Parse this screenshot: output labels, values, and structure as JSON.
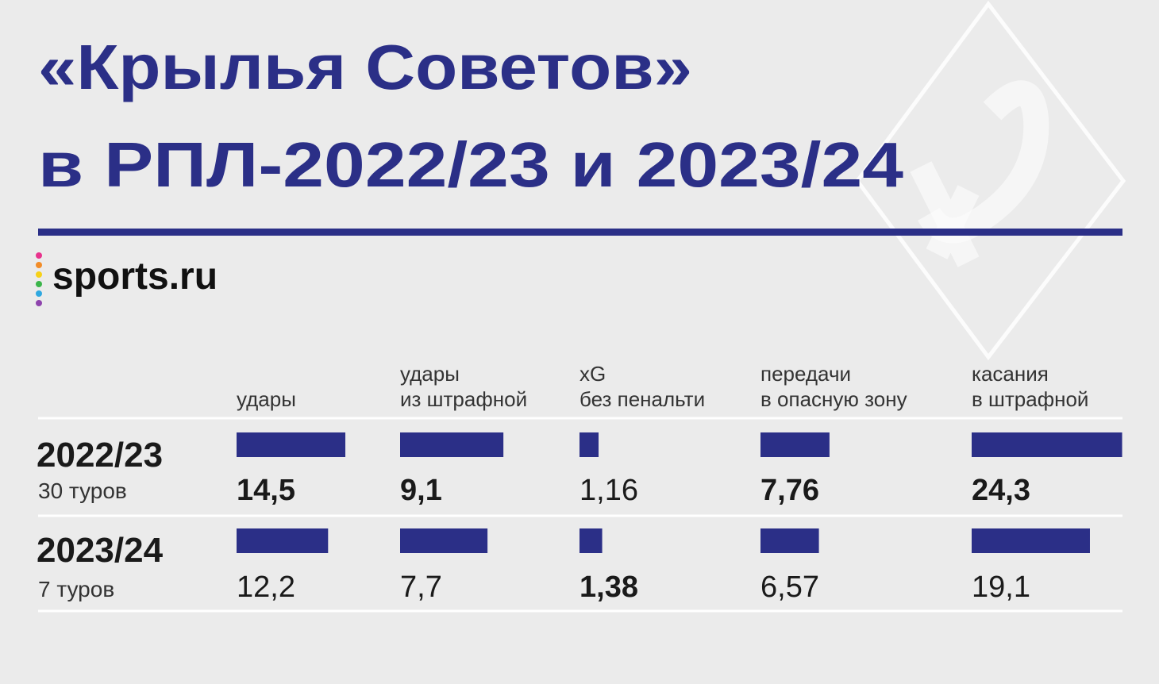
{
  "header": {
    "title": [
      "«Крылья Советов»",
      "в РПЛ-2022/23 и 2023/24"
    ],
    "logo": "sports.ru"
  },
  "table": {
    "columns": [
      [
        "удары"
      ],
      [
        "удары",
        "из штрафной"
      ],
      [
        "xG",
        "без пенальти"
      ],
      [
        "передачи",
        "в опасную зону"
      ],
      [
        "касания",
        "в штрафной"
      ]
    ],
    "bar_color": "#2b2f87",
    "rows": [
      {
        "season": "2022/23",
        "games": "30 туров",
        "values": [
          14.5,
          9.1,
          1.16,
          7.76,
          24.3
        ],
        "value_labels": [
          "14,5",
          "9,1",
          "1,16",
          "7,76",
          "24,3"
        ]
      },
      {
        "season": "2023/24",
        "games": "7 туров",
        "values": [
          12.2,
          7.7,
          1.38,
          6.57,
          19.1
        ],
        "value_labels": [
          "12,2",
          "7,7",
          "1,38",
          "6,57",
          "19,1"
        ]
      }
    ]
  }
}
